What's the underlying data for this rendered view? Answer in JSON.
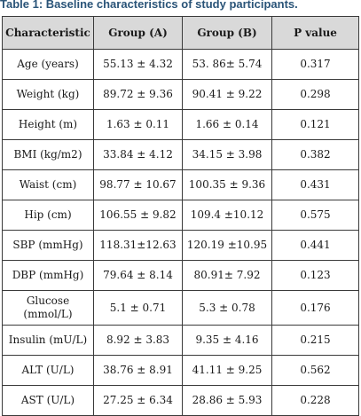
{
  "caption": {
    "label": "Table 1:",
    "title": "Baseline characteristics of study participants."
  },
  "table": {
    "headers": [
      "Characteristic",
      "Group (A)",
      "Group (B)",
      "P value"
    ],
    "rows": [
      [
        "Age (years)",
        "55.13 ± 4.32",
        "53. 86± 5.74",
        "0.317"
      ],
      [
        "Weight (kg)",
        "89.72 ± 9.36",
        "90.41 ± 9.22",
        "0.298"
      ],
      [
        "Height (m)",
        "1.63 ± 0.11",
        "1.66 ± 0.14",
        "0.121"
      ],
      [
        "BMI (kg/m2)",
        "33.84 ± 4.12",
        "34.15 ± 3.98",
        "0.382"
      ],
      [
        "Waist (cm)",
        "98.77 ± 10.67",
        "100.35 ± 9.36",
        "0.431"
      ],
      [
        "Hip (cm)",
        "106.55 ± 9.82",
        "109.4 ±10.12",
        "0.575"
      ],
      [
        "SBP (mmHg)",
        "118.31±12.63",
        "120.19 ±10.95",
        "0.441"
      ],
      [
        "DBP (mmHg)",
        "79.64 ± 8.14",
        "80.91± 7.92",
        "0.123"
      ],
      [
        "Glucose (mmol/L)",
        "5.1 ± 0.71",
        "5.3 ± 0.78",
        "0.176"
      ],
      [
        "Insulin (mU/L)",
        "8.92 ± 3.83",
        "9.35 ± 4.16",
        "0.215"
      ],
      [
        "ALT (U/L)",
        "38.76 ± 8.91",
        "41.11 ± 9.25",
        "0.562"
      ],
      [
        "AST (U/L)",
        "27.25 ± 6.34",
        "28.86 ± 5.93",
        "0.228"
      ]
    ]
  }
}
